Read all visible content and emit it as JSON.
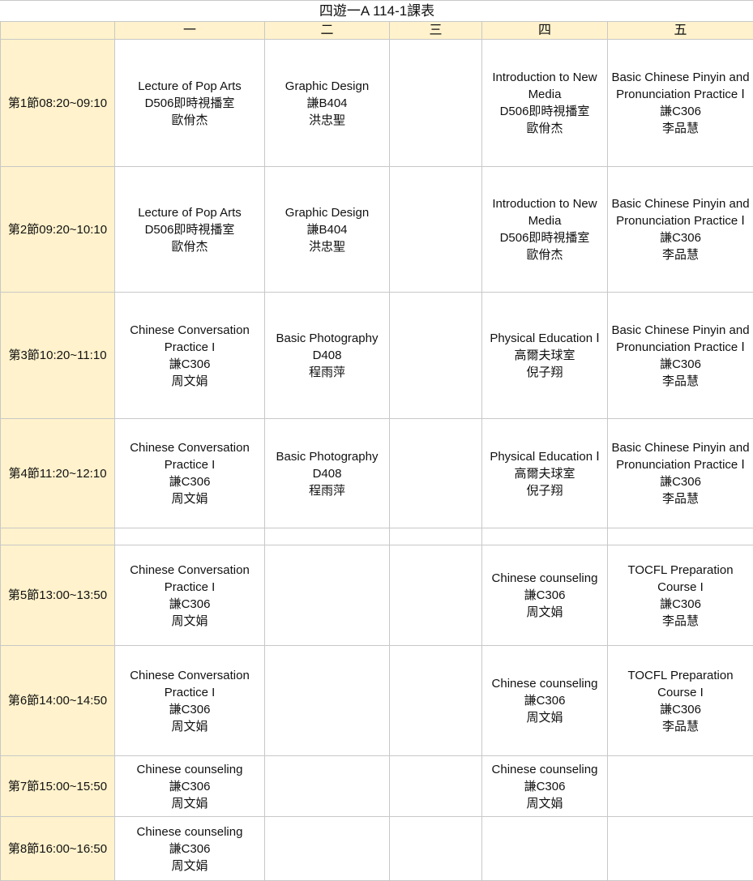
{
  "title": "四遊一A  114-1課表",
  "days": [
    "一",
    "二",
    "三",
    "四",
    "五"
  ],
  "rows": [
    {
      "period": "第1節08:20~09:10",
      "cells": [
        [
          "Lecture of Pop Arts",
          "D506即時視播室",
          "歐佾杰"
        ],
        [
          "Graphic Design",
          "謙B404",
          "洪忠聖"
        ],
        [],
        [
          "Introduction to New Media",
          "D506即時視播室",
          "歐佾杰"
        ],
        [
          "Basic Chinese Pinyin and Pronunciation Practice Ⅰ",
          "謙C306",
          "李品慧"
        ]
      ]
    },
    {
      "period": "第2節09:20~10:10",
      "cells": [
        [
          "Lecture of Pop Arts",
          "D506即時視播室",
          "歐佾杰"
        ],
        [
          "Graphic Design",
          "謙B404",
          "洪忠聖"
        ],
        [],
        [
          "Introduction to New Media",
          "D506即時視播室",
          "歐佾杰"
        ],
        [
          "Basic Chinese Pinyin and Pronunciation Practice Ⅰ",
          "謙C306",
          "李品慧"
        ]
      ]
    },
    {
      "period": "第3節10:20~11:10",
      "cells": [
        [
          "Chinese Conversation Practice I",
          "謙C306",
          "周文娟"
        ],
        [
          "Basic Photography",
          "D408",
          "程雨萍"
        ],
        [],
        [
          "Physical Education Ⅰ",
          "高爾夫球室",
          "倪子翔"
        ],
        [
          "Basic Chinese Pinyin and Pronunciation Practice Ⅰ",
          "謙C306",
          "李品慧"
        ]
      ]
    },
    {
      "period": "第4節11:20~12:10",
      "cells": [
        [
          "Chinese Conversation Practice I",
          "謙C306",
          "周文娟"
        ],
        [
          "Basic Photography",
          "D408",
          "程雨萍"
        ],
        [],
        [
          "Physical Education Ⅰ",
          "高爾夫球室",
          "倪子翔"
        ],
        [
          "Basic Chinese Pinyin and Pronunciation Practice Ⅰ",
          "謙C306",
          "李品慧"
        ]
      ]
    },
    {
      "period": "",
      "cells": [
        [],
        [],
        [],
        [],
        []
      ]
    },
    {
      "period": "第5節13:00~13:50",
      "cells": [
        [
          "Chinese Conversation Practice I",
          "謙C306",
          "周文娟"
        ],
        [],
        [],
        [
          "Chinese counseling",
          "謙C306",
          "周文娟"
        ],
        [
          "TOCFL Preparation Course I",
          "謙C306",
          "李品慧"
        ]
      ]
    },
    {
      "period": "第6節14:00~14:50",
      "cells": [
        [
          "Chinese Conversation Practice I",
          "謙C306",
          "周文娟"
        ],
        [],
        [],
        [
          "Chinese counseling",
          "謙C306",
          "周文娟"
        ],
        [
          "TOCFL Preparation Course I",
          "謙C306",
          "李品慧"
        ]
      ]
    },
    {
      "period": "第7節15:00~15:50",
      "cells": [
        [
          "Chinese counseling",
          "謙C306",
          "周文娟"
        ],
        [],
        [],
        [
          "Chinese counseling",
          "謙C306",
          "周文娟"
        ],
        []
      ]
    },
    {
      "period": "第8節16:00~16:50",
      "cells": [
        [
          "Chinese counseling",
          "謙C306",
          "周文娟"
        ],
        [],
        [],
        [],
        []
      ]
    }
  ]
}
